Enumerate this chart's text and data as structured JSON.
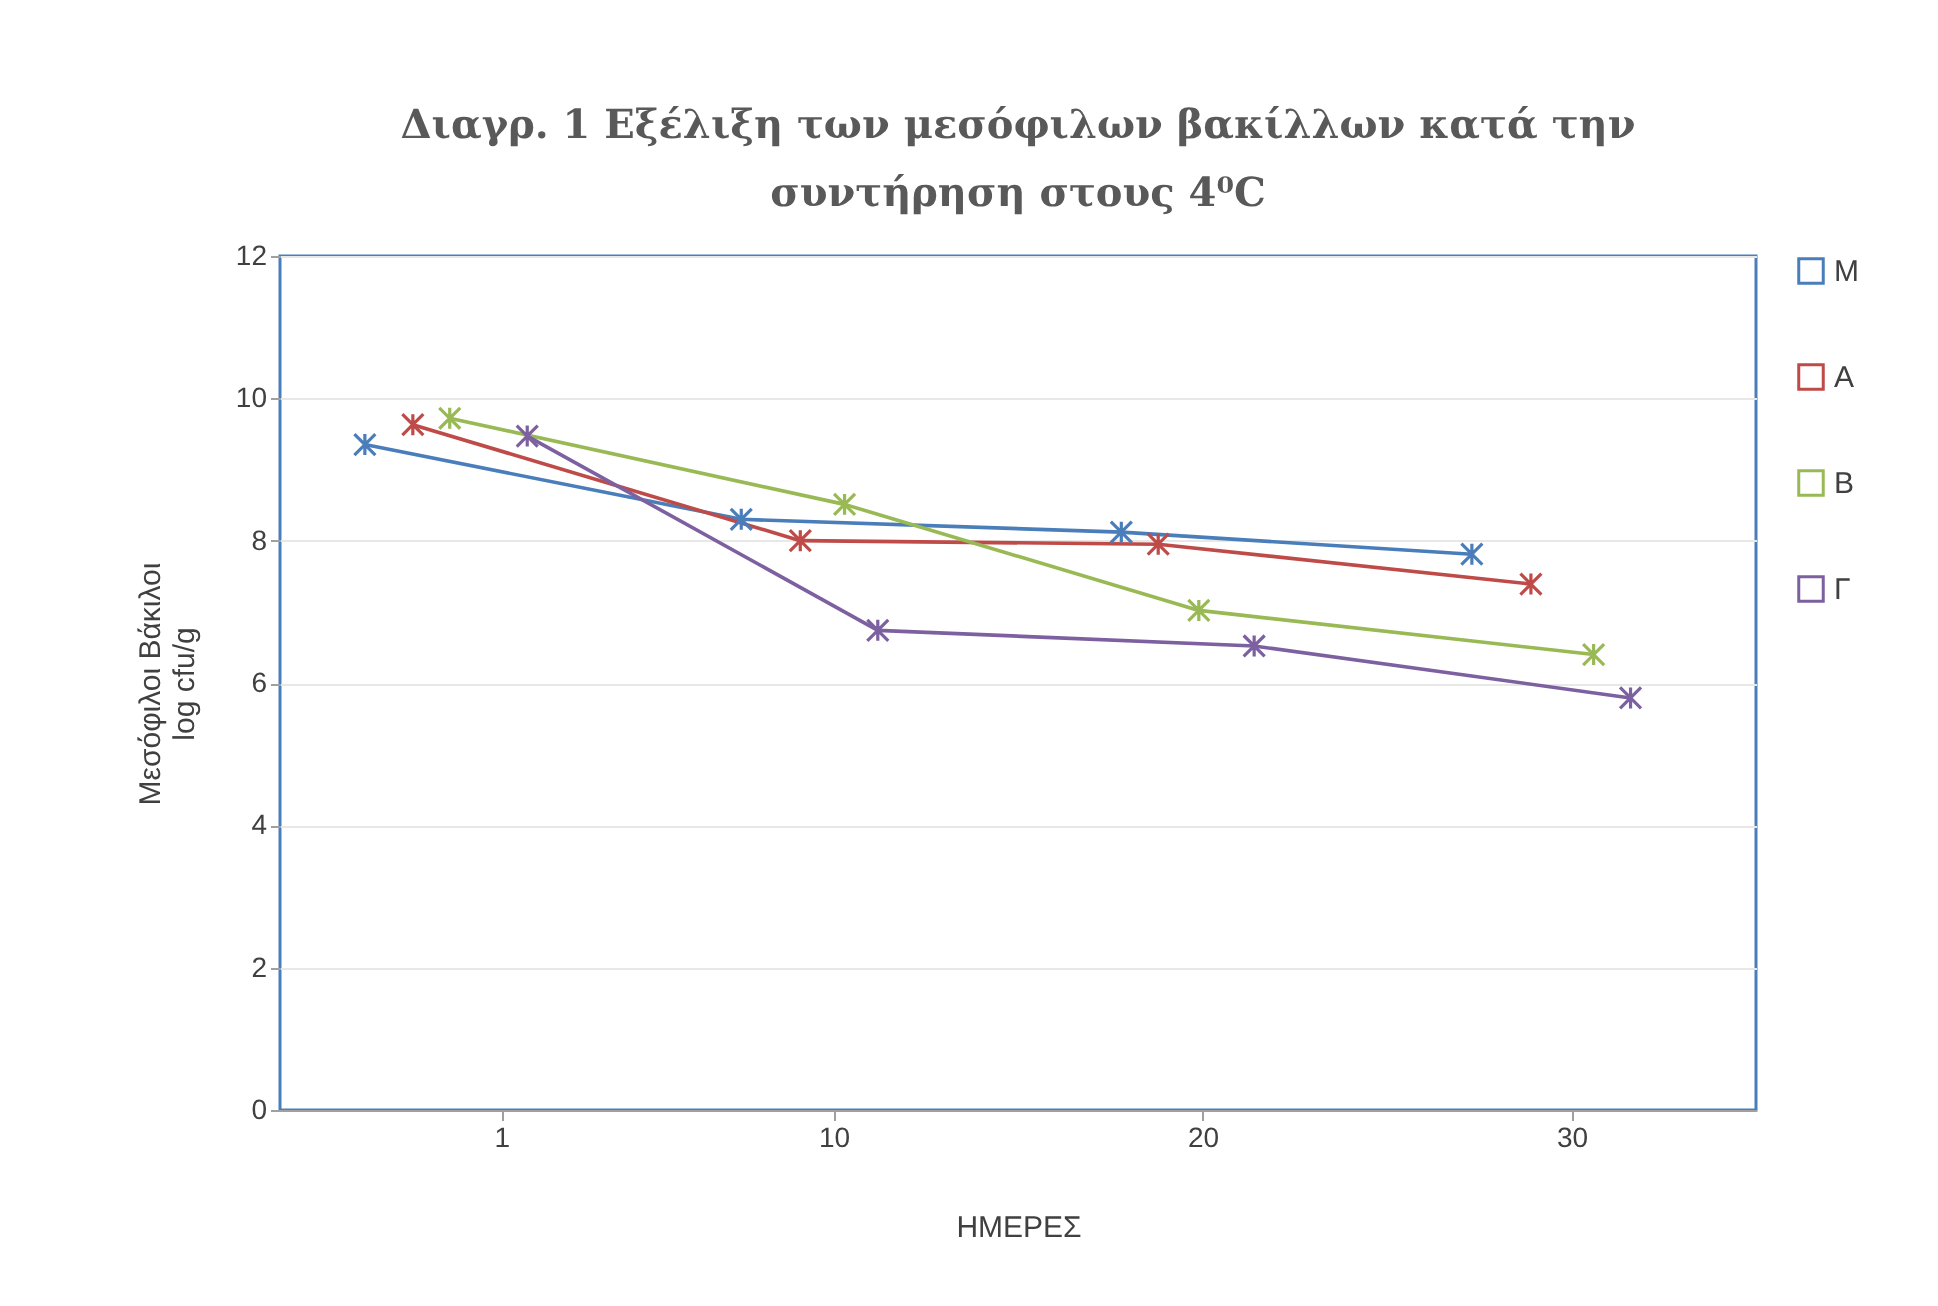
{
  "chart_data": {
    "type": "line",
    "title": [
      "Διαγρ. 1 Εξέλιξη των μεσόφιλων βακίλλων κατά την",
      "συντήρηση στους 4⁰C"
    ],
    "xlabel": "ΗΜΕΡΕΣ",
    "ylabel": [
      "Μεσόφιλοι Βάκιλοι",
      "log cfu/g"
    ],
    "series": [
      {
        "name": "Μ",
        "color": "#4a7ebb",
        "x": [
          -2.7,
          7.5,
          17.8,
          27.3
        ],
        "values": [
          9.35,
          8.3,
          8.12,
          7.81
        ]
      },
      {
        "name": "Α",
        "color": "#be4b48",
        "x": [
          -1.4,
          9.1,
          18.8,
          28.9
        ],
        "values": [
          9.63,
          8.0,
          7.95,
          7.39
        ]
      },
      {
        "name": "Β",
        "color": "#98b954",
        "x": [
          -0.4,
          10.3,
          19.9,
          30.6
        ],
        "values": [
          9.72,
          8.51,
          7.02,
          6.4
        ]
      },
      {
        "name": "Γ",
        "color": "#7d60a0",
        "x": [
          1.7,
          11.2,
          21.4,
          31.6
        ],
        "values": [
          9.47,
          6.74,
          6.52,
          5.79
        ]
      }
    ],
    "xlim": [
      -5,
      35
    ],
    "xticks": [
      1,
      10,
      20,
      30
    ],
    "ylim": [
      0,
      12
    ],
    "yticks": [
      0,
      2,
      4,
      6,
      8,
      10,
      12
    ],
    "grid": "y",
    "legend": "right",
    "marker": "cross",
    "line_style": "solid"
  }
}
